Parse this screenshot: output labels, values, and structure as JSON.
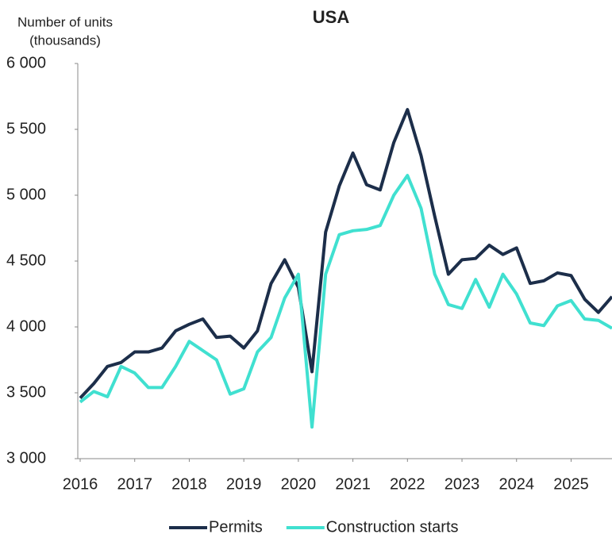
{
  "chart_data": {
    "type": "line",
    "title": "USA",
    "ylabel": [
      "Number of units",
      "(thousands)"
    ],
    "x": [
      2016,
      2016.25,
      2016.5,
      2016.75,
      2017,
      2017.25,
      2017.5,
      2017.75,
      2018,
      2018.25,
      2018.5,
      2018.75,
      2019,
      2019.25,
      2019.5,
      2019.75,
      2020,
      2020.25,
      2020.5,
      2020.75,
      2021,
      2021.25,
      2021.5,
      2021.75,
      2022,
      2022.25,
      2022.5,
      2022.75,
      2023,
      2023.25,
      2023.5,
      2023.75,
      2024,
      2024.25,
      2024.5,
      2024.75,
      2025,
      2025.25,
      2025.5,
      2025.75
    ],
    "series": [
      {
        "name": "Permits",
        "color": "#1c2e4a",
        "values": [
          3460,
          3570,
          3700,
          3730,
          3810,
          3810,
          3840,
          3970,
          4020,
          4060,
          3920,
          3930,
          3840,
          3970,
          4330,
          4510,
          4300,
          3660,
          4720,
          5070,
          5320,
          5080,
          5040,
          5400,
          5650,
          5300,
          4840,
          4400,
          4510,
          4520,
          4620,
          4550,
          4600,
          4330,
          4350,
          4410,
          4390,
          4210,
          4110,
          4230
        ]
      },
      {
        "name": "Construction starts",
        "color": "#40e0d0",
        "values": [
          3430,
          3510,
          3470,
          3700,
          3650,
          3540,
          3540,
          3700,
          3890,
          3820,
          3750,
          3490,
          3530,
          3810,
          3920,
          4220,
          4400,
          3240,
          4400,
          4700,
          4730,
          4740,
          4770,
          5000,
          5150,
          4900,
          4400,
          4170,
          4140,
          4360,
          4150,
          4400,
          4250,
          4030,
          4010,
          4160,
          4200,
          4060,
          4050,
          3990
        ]
      }
    ],
    "xlim": [
      2016,
      2025.75
    ],
    "xticks": [
      2016,
      2017,
      2018,
      2019,
      2020,
      2021,
      2022,
      2023,
      2024,
      2025
    ],
    "ylim": [
      3000,
      6000
    ],
    "yticks": [
      {
        "value": 3000,
        "label": "3 000"
      },
      {
        "value": 3500,
        "label": "3 500"
      },
      {
        "value": 4000,
        "label": "4 000"
      },
      {
        "value": 4500,
        "label": "4 500"
      },
      {
        "value": 5000,
        "label": "5 000"
      },
      {
        "value": 5500,
        "label": "5 500"
      },
      {
        "value": 6000,
        "label": "6 000"
      }
    ],
    "grid": false,
    "legend": "bottom"
  }
}
